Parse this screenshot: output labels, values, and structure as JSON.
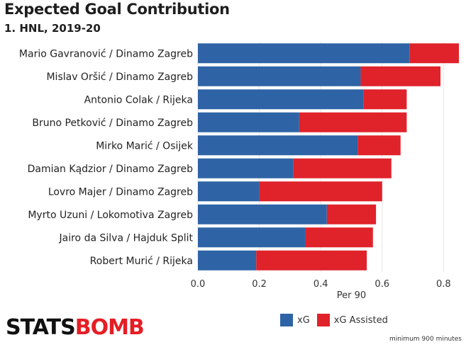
{
  "header": {
    "title": "Expected Goal Contribution",
    "subtitle": "1. HNL, 2019-20"
  },
  "footer": {
    "logo_part1": "STATS",
    "logo_part2": "BOMB",
    "note": "minimum 900 minutes"
  },
  "colors": {
    "xg": "#2e64a6",
    "xg_assisted": "#e0222b",
    "grid": "#e6e6e6"
  },
  "chart_data": {
    "type": "bar",
    "orientation": "horizontal",
    "stacked": true,
    "xlabel": "Per 90",
    "xlim": [
      0,
      0.85
    ],
    "xticks": [
      "0.0",
      "0.2",
      "0.4",
      "0.6",
      "0.8"
    ],
    "grid": true,
    "legend_position": "bottom-right",
    "categories": [
      "Mario Gavranović / Dinamo Zagreb",
      "Mislav Oršić / Dinamo Zagreb",
      "Antonio Colak / Rijeka",
      "Bruno Petković / Dinamo Zagreb",
      "Mirko Marić / Osijek",
      "Damian Kądzior / Dinamo Zagreb",
      "Lovro Majer / Dinamo Zagreb",
      "Myrto Uzuni / Lokomotiva Zagreb",
      "Jairo da Silva / Hajduk Split",
      "Robert Murić / Rijeka"
    ],
    "series": [
      {
        "name": "xG",
        "values": [
          0.69,
          0.53,
          0.54,
          0.33,
          0.52,
          0.31,
          0.2,
          0.42,
          0.35,
          0.19
        ]
      },
      {
        "name": "xG Assisted",
        "values": [
          0.16,
          0.26,
          0.14,
          0.35,
          0.14,
          0.32,
          0.4,
          0.16,
          0.22,
          0.36
        ]
      }
    ]
  }
}
